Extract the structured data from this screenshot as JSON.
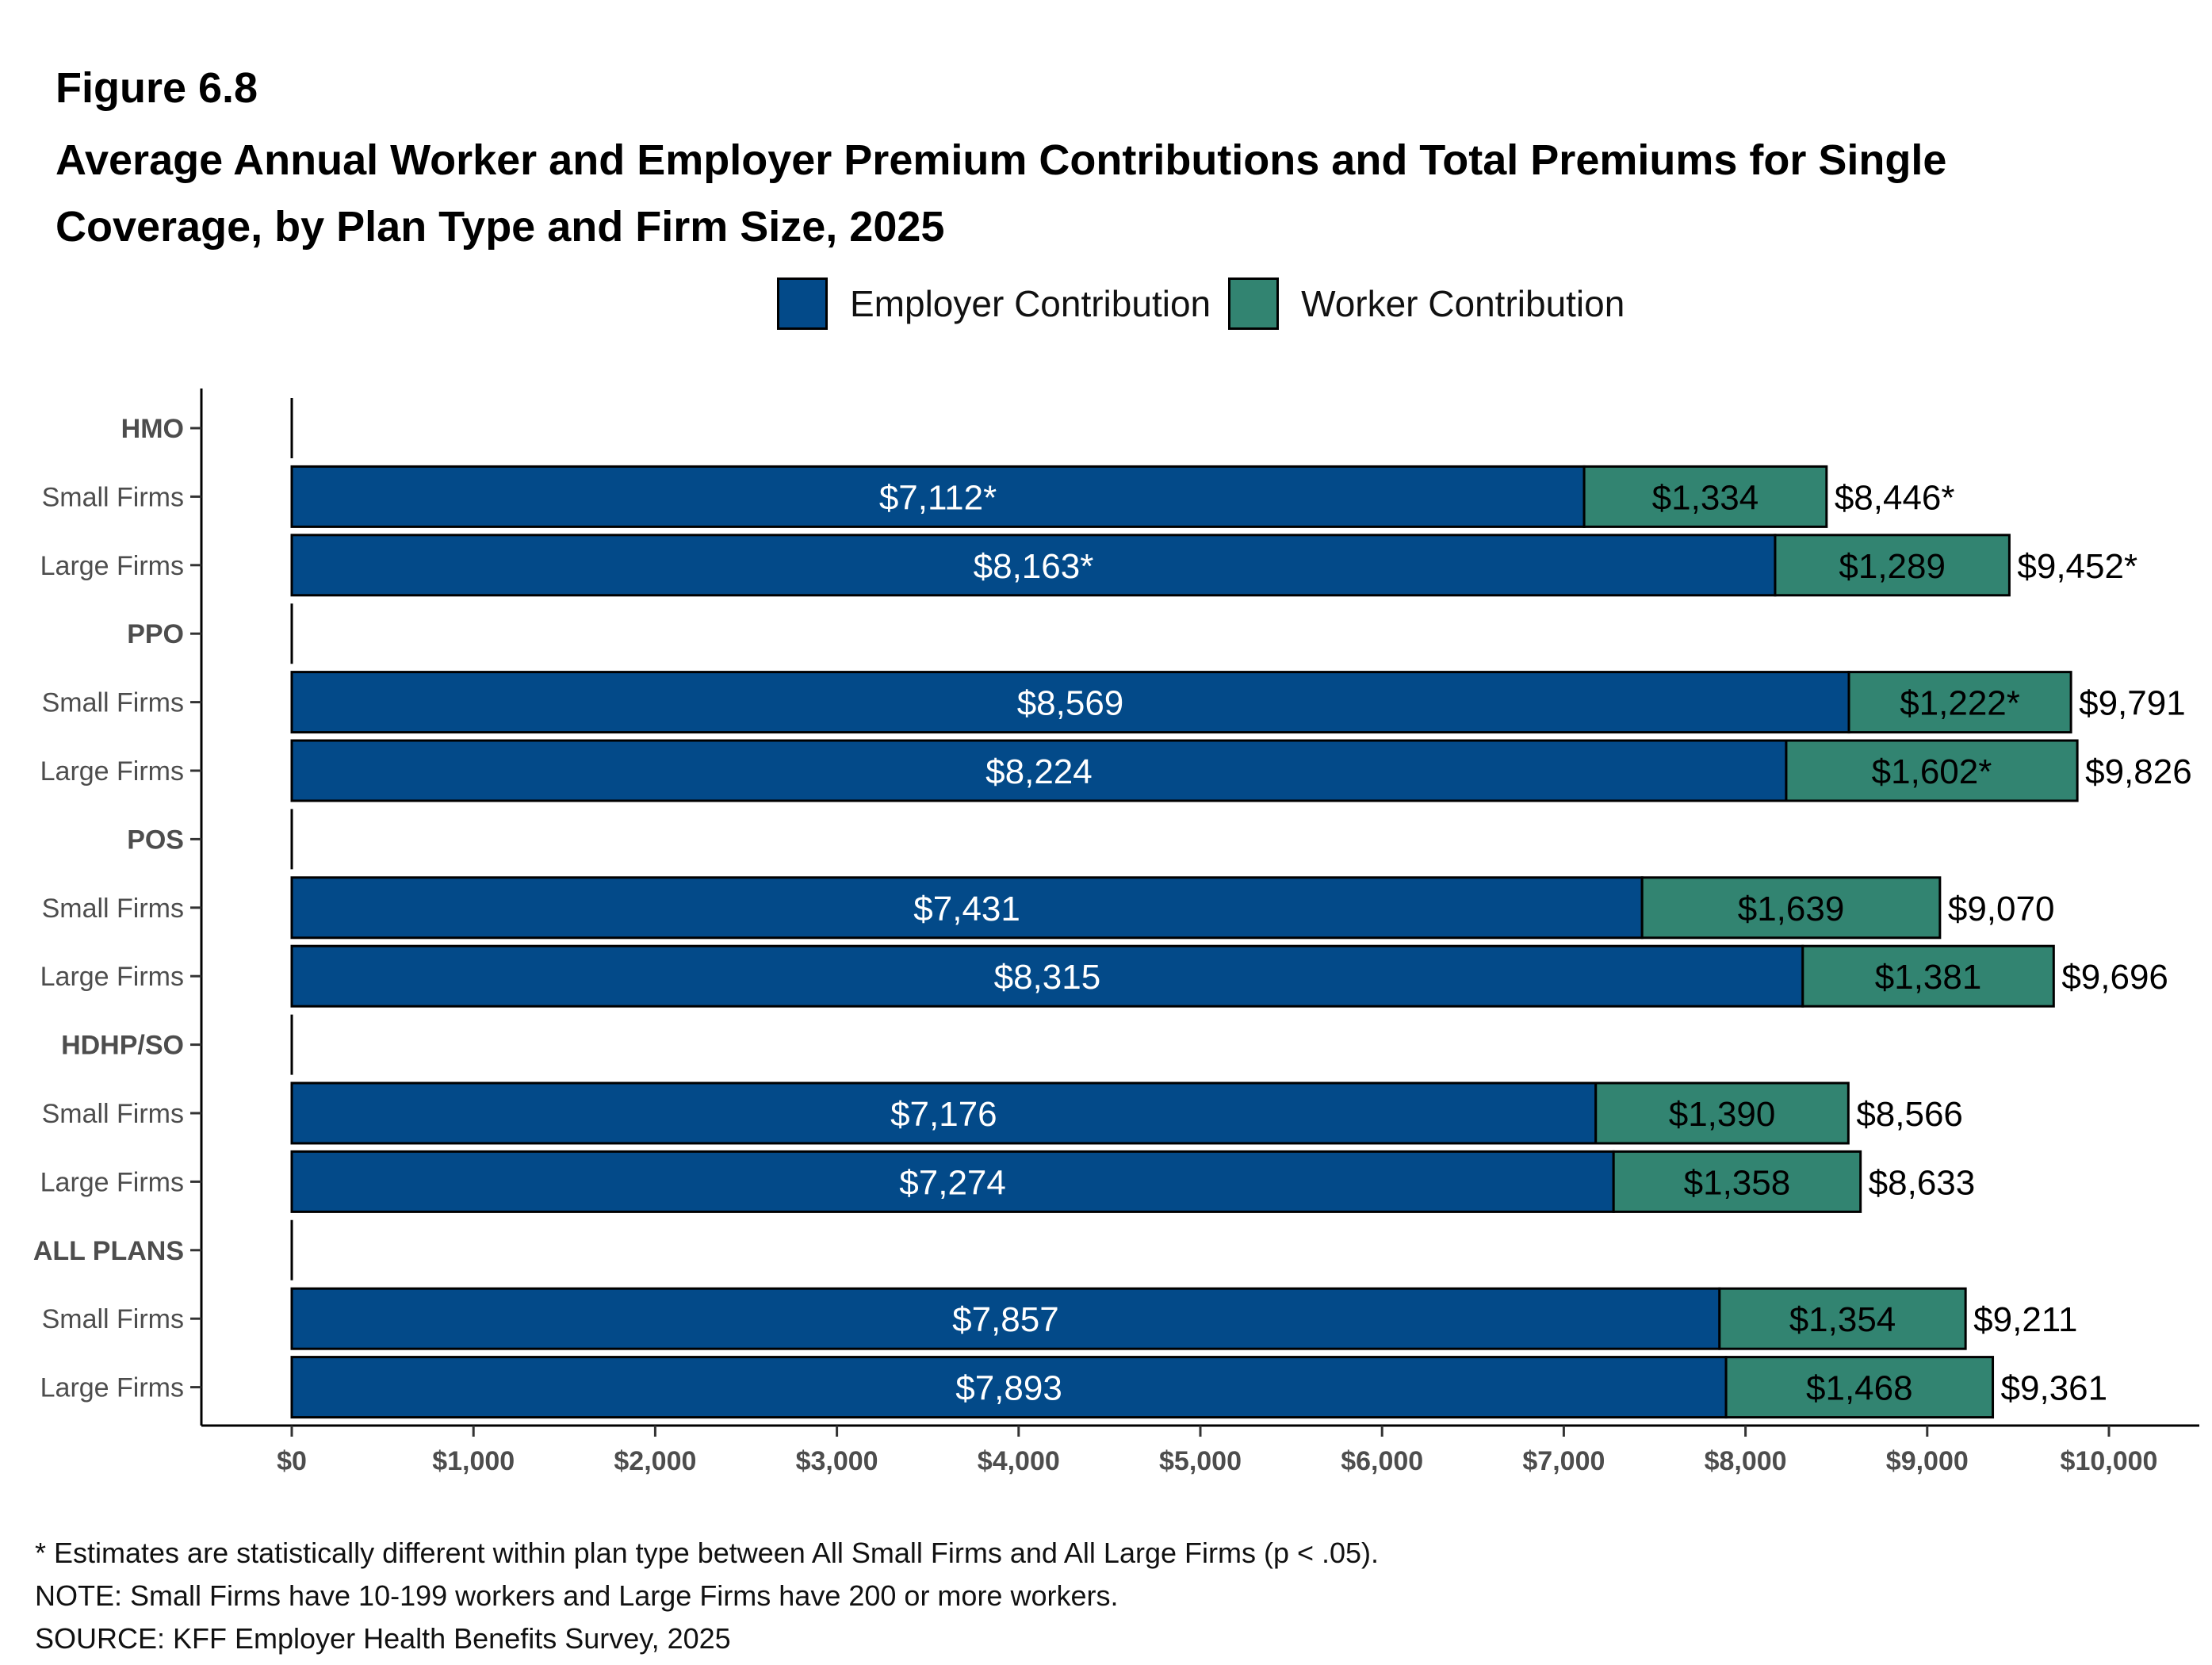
{
  "figure_label": "Figure 6.8",
  "title": "Average Annual Worker and Employer Premium Contributions and Total Premiums for Single Coverage, by Plan Type and Firm Size, 2025",
  "legend": [
    {
      "label": "Employer Contribution",
      "color": "#034A89"
    },
    {
      "label": "Worker Contribution",
      "color": "#328471"
    }
  ],
  "footnotes": [
    "* Estimates are statistically different within plan type between All Small Firms and All Large Firms (p < .05).",
    "NOTE: Small Firms have 10-199 workers and Large Firms have 200 or more workers.",
    "SOURCE: KFF Employer Health Benefits Survey, 2025"
  ],
  "chart_data": {
    "type": "bar",
    "orientation": "horizontal",
    "stacked": true,
    "title": "Average Annual Worker and Employer Premium Contributions and Total Premiums for Single Coverage, by Plan Type and Firm Size, 2025",
    "xlabel": "",
    "ylabel": "",
    "xlim": [
      0,
      10000
    ],
    "x_ticks": [
      {
        "value": 0,
        "label": "$0"
      },
      {
        "value": 1000,
        "label": "$1,000"
      },
      {
        "value": 2000,
        "label": "$2,000"
      },
      {
        "value": 3000,
        "label": "$3,000"
      },
      {
        "value": 4000,
        "label": "$4,000"
      },
      {
        "value": 5000,
        "label": "$5,000"
      },
      {
        "value": 6000,
        "label": "$6,000"
      },
      {
        "value": 7000,
        "label": "$7,000"
      },
      {
        "value": 8000,
        "label": "$8,000"
      },
      {
        "value": 9000,
        "label": "$9,000"
      },
      {
        "value": 10000,
        "label": "$10,000"
      }
    ],
    "legend_position": "top",
    "grid": false,
    "rows": [
      {
        "label": "HMO",
        "group_header": true
      },
      {
        "label": "Small Firms",
        "employer": 7112,
        "worker": 1334,
        "total": 8446,
        "employer_label": "$7,112*",
        "worker_label": "$1,334",
        "total_label": "$8,446*"
      },
      {
        "label": "Large Firms",
        "employer": 8163,
        "worker": 1289,
        "total": 9452,
        "employer_label": "$8,163*",
        "worker_label": "$1,289",
        "total_label": "$9,452*"
      },
      {
        "label": "PPO",
        "group_header": true
      },
      {
        "label": "Small Firms",
        "employer": 8569,
        "worker": 1222,
        "total": 9791,
        "employer_label": "$8,569",
        "worker_label": "$1,222*",
        "total_label": "$9,791"
      },
      {
        "label": "Large Firms",
        "employer": 8224,
        "worker": 1602,
        "total": 9826,
        "employer_label": "$8,224",
        "worker_label": "$1,602*",
        "total_label": "$9,826"
      },
      {
        "label": "POS",
        "group_header": true
      },
      {
        "label": "Small Firms",
        "employer": 7431,
        "worker": 1639,
        "total": 9070,
        "employer_label": "$7,431",
        "worker_label": "$1,639",
        "total_label": "$9,070"
      },
      {
        "label": "Large Firms",
        "employer": 8315,
        "worker": 1381,
        "total": 9696,
        "employer_label": "$8,315",
        "worker_label": "$1,381",
        "total_label": "$9,696"
      },
      {
        "label": "HDHP/SO",
        "group_header": true
      },
      {
        "label": "Small Firms",
        "employer": 7176,
        "worker": 1390,
        "total": 8566,
        "employer_label": "$7,176",
        "worker_label": "$1,390",
        "total_label": "$8,566"
      },
      {
        "label": "Large Firms",
        "employer": 7274,
        "worker": 1358,
        "total": 8633,
        "employer_label": "$7,274",
        "worker_label": "$1,358",
        "total_label": "$8,633"
      },
      {
        "label": "ALL PLANS",
        "group_header": true
      },
      {
        "label": "Small Firms",
        "employer": 7857,
        "worker": 1354,
        "total": 9211,
        "employer_label": "$7,857",
        "worker_label": "$1,354",
        "total_label": "$9,211"
      },
      {
        "label": "Large Firms",
        "employer": 7893,
        "worker": 1468,
        "total": 9361,
        "employer_label": "$7,893",
        "worker_label": "$1,468",
        "total_label": "$9,361"
      }
    ]
  }
}
